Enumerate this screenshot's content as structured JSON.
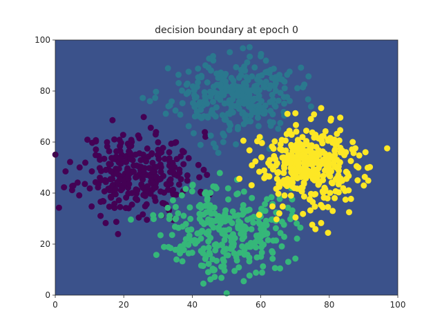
{
  "chart_data": {
    "type": "scatter",
    "title": "decision boundary at epoch 0",
    "xlabel": "",
    "ylabel": "",
    "xlim": [
      0,
      100
    ],
    "ylim": [
      0,
      100
    ],
    "xticks": [
      0,
      20,
      40,
      60,
      80,
      100
    ],
    "yticks": [
      0,
      20,
      40,
      60,
      80,
      100
    ],
    "grid": false,
    "background_color": "#3b528b",
    "series": [
      {
        "color": "#440154",
        "center": [
          24,
          48
        ],
        "spread": [
          8.5,
          8
        ],
        "count": 300,
        "seed": 11
      },
      {
        "color": "#2a788e",
        "center": [
          52,
          78
        ],
        "spread": [
          9,
          7.5
        ],
        "count": 300,
        "seed": 23
      },
      {
        "color": "#35b779",
        "center": [
          50,
          26
        ],
        "spread": [
          9,
          9
        ],
        "count": 300,
        "seed": 37
      },
      {
        "color": "#fde725",
        "center": [
          75,
          50
        ],
        "spread": [
          8,
          8.5
        ],
        "count": 350,
        "seed": 53
      }
    ]
  }
}
